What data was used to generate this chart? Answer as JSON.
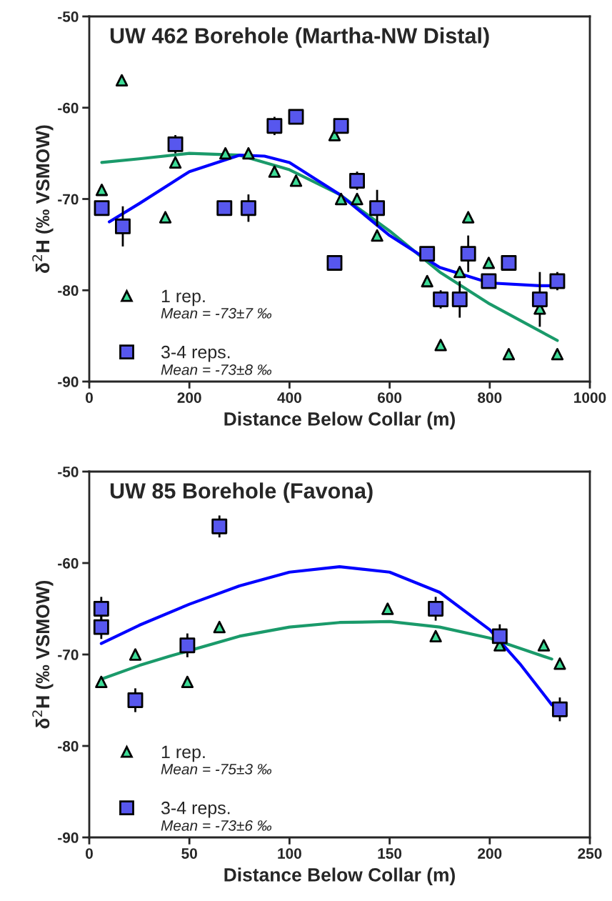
{
  "chart_data": [
    {
      "type": "scatter",
      "title": "UW 462 Borehole (Martha-NW Distal)",
      "xlabel": "Distance Below Collar (m)",
      "ylabel": "δ$^{2}$H (‰ VSMOW)",
      "xlim": [
        0,
        1000
      ],
      "xticks": [
        0,
        200,
        400,
        600,
        800,
        1000
      ],
      "ylim": [
        -90,
        -50
      ],
      "yticks": [
        -90,
        -80,
        -70,
        -60,
        -50
      ],
      "grid": false,
      "legend": "bottom left",
      "annotations": [
        "Mean = -73±7 ‰",
        "Mean = -73±8 ‰"
      ],
      "series": [
        {
          "name": "1 rep.",
          "marker": "triangle",
          "color": "#3ddc97",
          "x": [
            25,
            65,
            152,
            172,
            272,
            318,
            370,
            413,
            490,
            503,
            535,
            575,
            675,
            702,
            740,
            757,
            798,
            838,
            900,
            935
          ],
          "values": [
            -69,
            -57,
            -72,
            -66,
            -65,
            -65,
            -67,
            -68,
            -63,
            -70,
            -70,
            -74,
            -79,
            -86,
            -78,
            -72,
            -77,
            -87,
            -82,
            -87
          ]
        },
        {
          "name": "3-4 reps.",
          "marker": "square",
          "color": "#5757ee",
          "x": [
            25,
            67,
            172,
            270,
            318,
            370,
            413,
            490,
            503,
            535,
            575,
            675,
            702,
            740,
            757,
            798,
            838,
            900,
            935
          ],
          "values": [
            -71,
            -73,
            -64,
            -71,
            -71,
            -62,
            -61,
            -77,
            -62,
            -68,
            -71,
            -76,
            -81,
            -81,
            -76,
            -79,
            -77,
            -81,
            -79
          ],
          "errors": [
            null,
            2.2,
            1,
            null,
            1.5,
            1,
            null,
            null,
            null,
            1,
            2,
            null,
            1,
            2,
            2,
            null,
            null,
            3,
            1
          ]
        },
        {
          "type": "line",
          "color": "#1a9a6a",
          "x": [
            25,
            100,
            200,
            300,
            400,
            500,
            600,
            700,
            800,
            935
          ],
          "values": [
            -66,
            -65.6,
            -65,
            -65.2,
            -66.8,
            -69.5,
            -73.5,
            -78,
            -81.5,
            -85.5
          ]
        },
        {
          "type": "line",
          "color": "#0000ff",
          "x": [
            40,
            100,
            200,
            300,
            350,
            400,
            500,
            600,
            700,
            800,
            900,
            935
          ],
          "values": [
            -72.5,
            -70.5,
            -67,
            -65.2,
            -65.3,
            -66,
            -69.5,
            -74,
            -77.5,
            -79.2,
            -79.5,
            -79.5
          ]
        }
      ]
    },
    {
      "type": "scatter",
      "title": "UW 85 Borehole (Favona)",
      "xlabel": "Distance Below Collar (m)",
      "ylabel": "δ$^{2}$H (‰ VSMOW)",
      "xlim": [
        0,
        250
      ],
      "xticks": [
        0,
        50,
        100,
        150,
        200,
        250
      ],
      "ylim": [
        -90,
        -50
      ],
      "yticks": [
        -90,
        -80,
        -70,
        -60,
        -50
      ],
      "grid": false,
      "legend": "bottom left",
      "annotations": [
        "Mean = -75±3 ‰",
        "Mean = -73±6 ‰"
      ],
      "series": [
        {
          "name": "1 rep.",
          "marker": "triangle",
          "color": "#3ddc97",
          "x": [
            6,
            23,
            49,
            65,
            149,
            173,
            205,
            227,
            235
          ],
          "values": [
            -73,
            -70,
            -73,
            -67,
            -65,
            -68,
            -69,
            -69,
            -71
          ]
        },
        {
          "name": "3-4 reps.",
          "marker": "square",
          "color": "#5757ee",
          "x": [
            6,
            6,
            23,
            49,
            65,
            173,
            205,
            235
          ],
          "values": [
            -65,
            -67,
            -75,
            -69,
            -56,
            -65,
            -68,
            -76
          ],
          "errors": [
            1.3,
            1.3,
            1.3,
            1.3,
            1.2,
            1.3,
            1.3,
            1.3
          ]
        },
        {
          "type": "line",
          "color": "#1a9a6a",
          "x": [
            6,
            25,
            40,
            75,
            100,
            125,
            150,
            175,
            200,
            231
          ],
          "values": [
            -72.7,
            -71.2,
            -70.2,
            -68,
            -67,
            -66.5,
            -66.4,
            -67,
            -68.2,
            -70.5
          ]
        },
        {
          "type": "line",
          "color": "#0000ff",
          "x": [
            6,
            25,
            50,
            75,
            100,
            125,
            150,
            175,
            200,
            215,
            231
          ],
          "values": [
            -68.8,
            -66.8,
            -64.5,
            -62.5,
            -61,
            -60.4,
            -61,
            -63.2,
            -67.3,
            -71,
            -75.5
          ]
        }
      ]
    }
  ]
}
